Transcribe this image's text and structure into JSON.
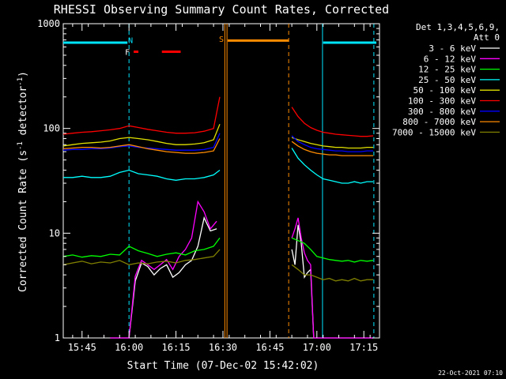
{
  "chart_data": {
    "type": "line",
    "title": "RHESSI Observing Summary Count Rates, Corrected",
    "xlabel": "Start Time (07-Dec-02 15:42:02)",
    "ylabel_main": "Corrected Count Rate (s",
    "ylabel_sup1": "-1",
    "ylabel_mid": " detector",
    "ylabel_sup2": "-1",
    "ylabel_end": ")",
    "yscale": "log",
    "ylim": [
      1,
      1000
    ],
    "xlim_minutes": [
      -3,
      98
    ],
    "x_ticks": [
      {
        "m": 3,
        "label": "15:45"
      },
      {
        "m": 18,
        "label": "16:00"
      },
      {
        "m": 33,
        "label": "16:15"
      },
      {
        "m": 48,
        "label": "16:30"
      },
      {
        "m": 63,
        "label": "16:45"
      },
      {
        "m": 78,
        "label": "17:00"
      },
      {
        "m": 93,
        "label": "17:15"
      }
    ],
    "y_ticks": [
      {
        "v": 1,
        "label": "1"
      },
      {
        "v": 10,
        "label": "10"
      },
      {
        "v": 100,
        "label": "100"
      },
      {
        "v": 1000,
        "label": "1000"
      }
    ],
    "legend": {
      "header1": "Det 1,3,4,5,6,9,",
      "header2": "Att 0",
      "placement": "top-right"
    },
    "series": [
      {
        "name": "3 - 6 keV",
        "color": "#ffffff",
        "segments": [
          {
            "x": [
              12,
              14,
              16,
              18,
              20,
              22,
              24,
              26,
              28,
              30,
              32,
              34,
              36,
              38,
              40,
              42,
              44,
              46
            ],
            "y": [
              1.0,
              1.0,
              1.0,
              1.0,
              3.5,
              5.2,
              4.8,
              4.0,
              4.6,
              5.0,
              3.8,
              4.2,
              5.0,
              5.5,
              7.5,
              14,
              10.5,
              11
            ]
          },
          {
            "x": [
              70,
              71,
              72,
              73,
              74,
              75,
              76,
              77,
              78,
              80,
              82,
              84,
              86,
              88,
              90,
              92,
              94,
              96
            ],
            "y": [
              7,
              5,
              12,
              8,
              3.8,
              4.2,
              4.5,
              1.0,
              1.0,
              1.0,
              1.0,
              1.0,
              1.0,
              1.0,
              1.0,
              1.0,
              1.0,
              1.0
            ]
          }
        ]
      },
      {
        "name": "6 - 12 keV",
        "color": "#ff00ff",
        "segments": [
          {
            "x": [
              12,
              14,
              16,
              18,
              20,
              22,
              24,
              26,
              28,
              30,
              32,
              34,
              36,
              38,
              40,
              42,
              44,
              46
            ],
            "y": [
              1.0,
              1.0,
              1.0,
              1.0,
              3.9,
              5.5,
              5.0,
              4.5,
              5.0,
              5.6,
              4.5,
              6.0,
              7.0,
              9.0,
              20,
              16,
              11,
              13
            ]
          },
          {
            "x": [
              70,
              71,
              72,
              73,
              74,
              75,
              76,
              77,
              78,
              80,
              82,
              84,
              86,
              88,
              90,
              92,
              94,
              96
            ],
            "y": [
              9,
              11,
              14,
              9,
              6.5,
              5.5,
              5.0,
              1.0,
              1.0,
              1.0,
              1.0,
              1.0,
              1.0,
              1.0,
              1.0,
              1.0,
              1.0,
              1.0
            ]
          }
        ]
      },
      {
        "name": "12 - 25 keV",
        "color": "#00ff00",
        "segments": [
          {
            "x": [
              -3,
              0,
              3,
              6,
              9,
              12,
              15,
              18,
              21,
              24,
              27,
              30,
              33,
              36,
              39,
              42,
              45,
              47
            ],
            "y": [
              6.0,
              6.2,
              5.9,
              6.1,
              6.0,
              6.3,
              6.2,
              7.5,
              6.8,
              6.4,
              6.0,
              6.3,
              6.5,
              6.2,
              6.8,
              7.0,
              7.5,
              9
            ]
          },
          {
            "x": [
              70,
              72,
              74,
              76,
              78,
              80,
              82,
              84,
              86,
              88,
              90,
              92,
              94,
              96
            ],
            "y": [
              9.0,
              8.5,
              8.0,
              7.0,
              6.0,
              5.8,
              5.6,
              5.5,
              5.4,
              5.5,
              5.3,
              5.5,
              5.4,
              5.5
            ]
          }
        ]
      },
      {
        "name": "25 - 50 keV",
        "color": "#00ffff",
        "segments": [
          {
            "x": [
              -3,
              0,
              3,
              6,
              9,
              12,
              15,
              18,
              21,
              24,
              27,
              30,
              33,
              36,
              39,
              42,
              45,
              47
            ],
            "y": [
              34,
              34,
              35,
              34,
              34,
              35,
              38,
              40,
              37,
              36,
              35,
              33,
              32,
              33,
              33,
              34,
              36,
              40
            ]
          },
          {
            "x": [
              70,
              72,
              74,
              76,
              78,
              80,
              82,
              84,
              86,
              88,
              90,
              92,
              94,
              96
            ],
            "y": [
              65,
              52,
              45,
              40,
              36,
              33,
              32,
              31,
              30,
              30,
              31,
              30,
              31,
              31
            ]
          }
        ]
      },
      {
        "name": "50 - 100 keV",
        "color": "#e0e000",
        "segments": [
          {
            "x": [
              -3,
              0,
              3,
              6,
              9,
              12,
              15,
              18,
              21,
              24,
              27,
              30,
              33,
              36,
              39,
              42,
              45,
              47
            ],
            "y": [
              68,
              70,
              72,
              73,
              74,
              76,
              80,
              82,
              80,
              78,
              75,
              72,
              70,
              70,
              71,
              73,
              78,
              110
            ]
          },
          {
            "x": [
              70,
              72,
              74,
              76,
              78,
              80,
              82,
              84,
              86,
              88,
              90,
              92,
              94,
              96
            ],
            "y": [
              82,
              78,
              75,
              72,
              70,
              68,
              67,
              66,
              66,
              65,
              65,
              65,
              66,
              66
            ]
          }
        ]
      },
      {
        "name": "100 - 300 keV",
        "color": "#ff0000",
        "segments": [
          {
            "x": [
              -3,
              0,
              3,
              6,
              9,
              12,
              15,
              18,
              21,
              24,
              27,
              30,
              33,
              36,
              39,
              42,
              45,
              47
            ],
            "y": [
              88,
              90,
              92,
              93,
              95,
              97,
              100,
              106,
              102,
              98,
              95,
              92,
              90,
              90,
              91,
              94,
              100,
              200
            ]
          },
          {
            "x": [
              70,
              72,
              74,
              76,
              78,
              80,
              82,
              84,
              86,
              88,
              90,
              92,
              94,
              96
            ],
            "y": [
              160,
              130,
              112,
              102,
              96,
              92,
              90,
              88,
              87,
              86,
              85,
              84,
              84,
              85
            ]
          }
        ]
      },
      {
        "name": "300 - 800 keV",
        "color": "#0000ff",
        "segments": [
          {
            "x": [
              -3,
              0,
              3,
              6,
              9,
              12,
              15,
              18,
              21,
              24,
              27,
              30,
              33,
              36,
              39,
              42,
              45,
              47
            ],
            "y": [
              62,
              63,
              63,
              64,
              64,
              65,
              67,
              68,
              66,
              65,
              64,
              63,
              62,
              62,
              62,
              63,
              66,
              90
            ]
          },
          {
            "x": [
              70,
              72,
              74,
              76,
              78,
              80,
              82,
              84,
              86,
              88,
              90,
              92,
              94,
              96
            ],
            "y": [
              85,
              75,
              70,
              66,
              64,
              63,
              62,
              61,
              61,
              60,
              60,
              60,
              61,
              61
            ]
          }
        ]
      },
      {
        "name": "800 - 7000 keV",
        "color": "#ff8c00",
        "segments": [
          {
            "x": [
              -3,
              0,
              3,
              6,
              9,
              12,
              15,
              18,
              21,
              24,
              27,
              30,
              33,
              36,
              39,
              42,
              45,
              47
            ],
            "y": [
              64,
              65,
              66,
              66,
              65,
              66,
              68,
              70,
              67,
              64,
              62,
              60,
              59,
              58,
              58,
              59,
              61,
              80
            ]
          },
          {
            "x": [
              70,
              72,
              74,
              76,
              78,
              80,
              82,
              84,
              86,
              88,
              90,
              92,
              94,
              96
            ],
            "y": [
              75,
              68,
              63,
              60,
              58,
              57,
              56,
              56,
              55,
              55,
              55,
              55,
              55,
              55
            ]
          }
        ]
      },
      {
        "name": "7000 - 15000 keV",
        "color": "#808000",
        "segments": [
          {
            "x": [
              -3,
              0,
              3,
              6,
              9,
              12,
              15,
              18,
              21,
              24,
              27,
              30,
              33,
              36,
              39,
              42,
              45,
              47
            ],
            "y": [
              5.0,
              5.2,
              5.4,
              5.1,
              5.3,
              5.2,
              5.5,
              5.0,
              5.2,
              5.1,
              5.3,
              5.4,
              5.2,
              5.5,
              5.6,
              5.8,
              6.0,
              7
            ]
          },
          {
            "x": [
              70,
              72,
              74,
              76,
              78,
              80,
              82,
              84,
              86,
              88,
              90,
              92,
              94,
              96
            ],
            "y": [
              5.0,
              4.5,
              4.0,
              4.0,
              3.8,
              3.6,
              3.7,
              3.5,
              3.6,
              3.5,
              3.7,
              3.5,
              3.6,
              3.6
            ]
          }
        ]
      }
    ],
    "flag_bars": [
      {
        "label": "",
        "color": "#00e5ff",
        "x0": -3,
        "x1": 17.5,
        "level": 660
      },
      {
        "label": "",
        "color": "#00e5ff",
        "x0": 80,
        "x1": 97,
        "level": 660
      },
      {
        "label": "",
        "color": "#ff8c00",
        "x0": 49.5,
        "x1": 69,
        "level": 690
      },
      {
        "label": "",
        "color": "#ff0000",
        "x0": 19.5,
        "x1": 21,
        "level": 540
      },
      {
        "label": "",
        "color": "#ff0000",
        "x0": 28.5,
        "x1": 34.5,
        "level": 540
      }
    ],
    "flag_labels": [
      {
        "text": "N",
        "color": "#00e5ff",
        "x": 18.5,
        "level": 700
      },
      {
        "text": "F",
        "color": "#ffffff",
        "x": 17.5,
        "level": 540
      },
      {
        "text": "S",
        "color": "#ff8c00",
        "x": 47.5,
        "level": 720
      }
    ],
    "vlines": [
      {
        "x": 18,
        "color": "#00e5ff",
        "dashed": true
      },
      {
        "x": 48.6,
        "color": "#ff8c00",
        "dashed": false
      },
      {
        "x": 49.3,
        "color": "#ff8c00",
        "dashed": false
      },
      {
        "x": 69,
        "color": "#ff8c00",
        "dashed": true
      },
      {
        "x": 79.8,
        "color": "#00e5ff",
        "dashed": false
      },
      {
        "x": 96.2,
        "color": "#00e5ff",
        "dashed": true
      }
    ],
    "footer_timestamp": "22-Oct-2021 07:10"
  }
}
